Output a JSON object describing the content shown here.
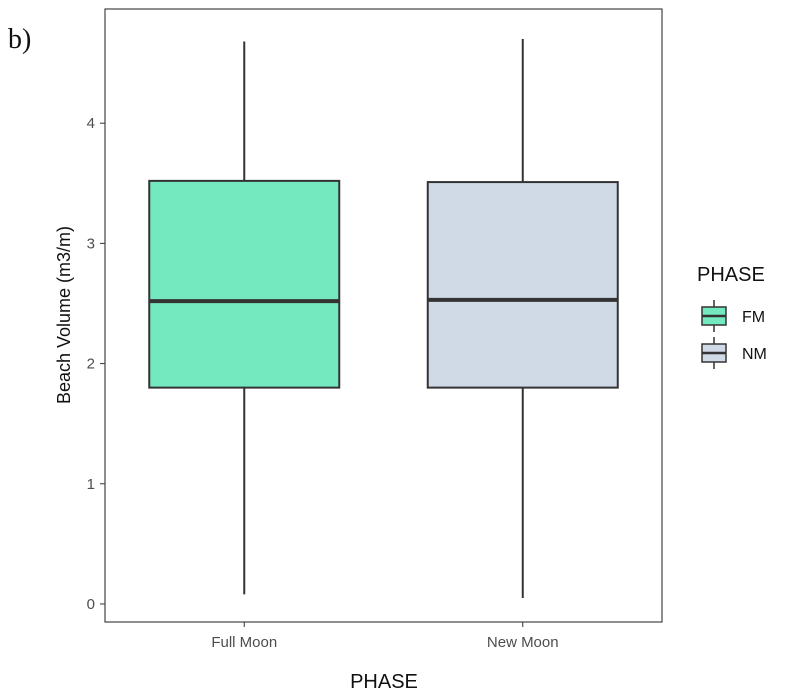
{
  "panel_label": "b)",
  "chart_data": {
    "type": "box",
    "title": "",
    "xlabel": "PHASE",
    "ylabel": "Beach Volume (m3/m)",
    "ylim": [
      -0.15,
      4.95
    ],
    "yticks": [
      0,
      1,
      2,
      3,
      4
    ],
    "ytick_labels": [
      "0",
      "1",
      "2",
      "3",
      "4"
    ],
    "grid": false,
    "legend": {
      "title": "PHASE",
      "position": "right",
      "entries": [
        "FM",
        "NM"
      ]
    },
    "categories": [
      "Full Moon",
      "New Moon"
    ],
    "series": [
      {
        "legend": "FM",
        "color": "#74E8BE",
        "whisker_low": 0.08,
        "q1": 1.8,
        "median": 2.52,
        "q3": 3.52,
        "whisker_high": 4.68
      },
      {
        "legend": "NM",
        "color": "#D0D9E6",
        "whisker_low": 0.05,
        "q1": 1.8,
        "median": 2.53,
        "q3": 3.51,
        "whisker_high": 4.7
      }
    ]
  }
}
